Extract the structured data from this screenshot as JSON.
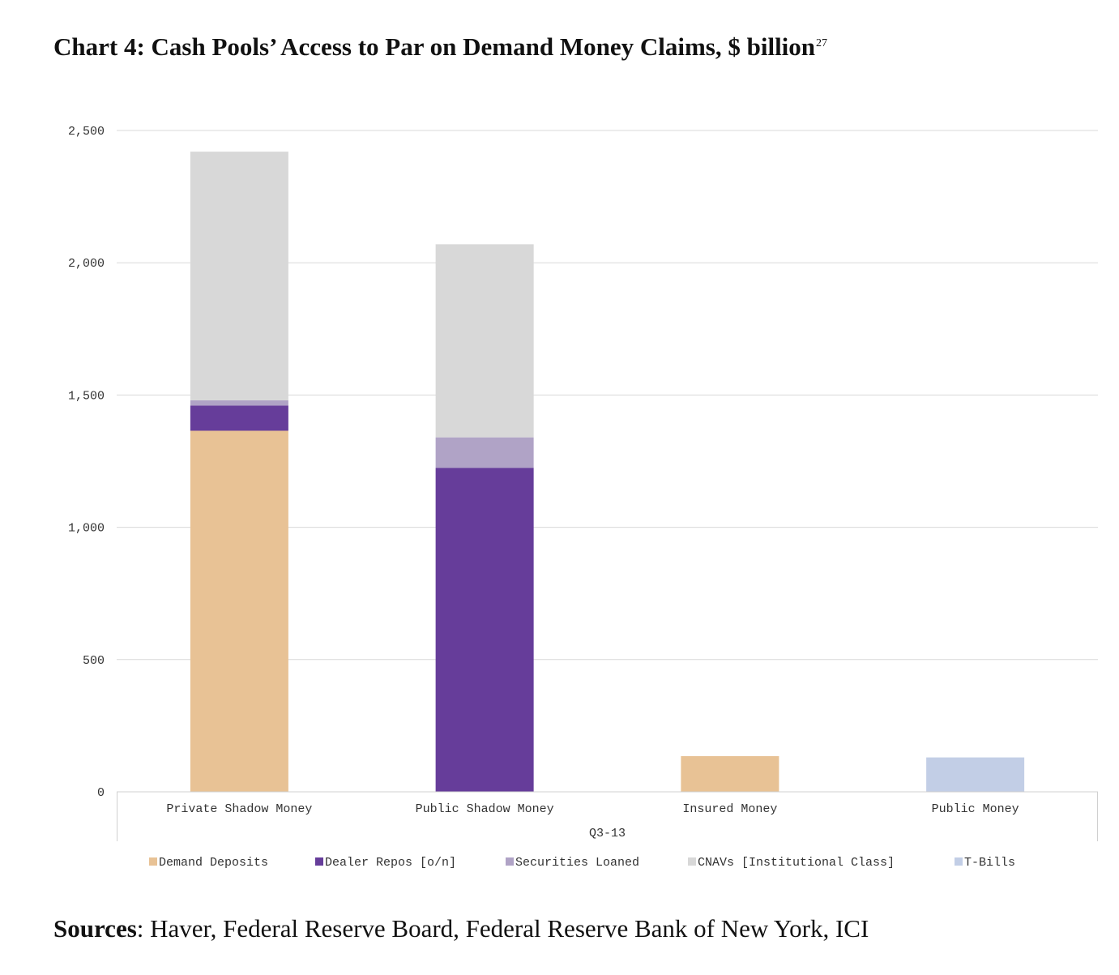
{
  "title": {
    "text": "Chart 4: Cash Pools’ Access to Par on Demand Money Claims, $ billion",
    "footnote": "27"
  },
  "sources": {
    "label": "Sources",
    "text": ": Haver, Federal Reserve Board, Federal Reserve Bank of New York, ICI"
  },
  "chart_data": {
    "type": "bar",
    "stacked": true,
    "group_label": "Q3-13",
    "categories": [
      "Private Shadow Money",
      "Public Shadow Money",
      "Insured Money",
      "Public Money"
    ],
    "ylim": [
      0,
      2500
    ],
    "yticks": [
      0,
      500,
      1000,
      1500,
      2000,
      2500
    ],
    "ytick_labels": [
      "0",
      "500",
      "1,000",
      "1,500",
      "2,000",
      "2,500"
    ],
    "grid": true,
    "legend_position": "bottom",
    "series": [
      {
        "name": "Demand Deposits",
        "color": "#e8c295",
        "values": [
          1365,
          0,
          135,
          0
        ]
      },
      {
        "name": "Dealer Repos [o/n]",
        "color": "#663d9a",
        "values": [
          95,
          1225,
          0,
          0
        ]
      },
      {
        "name": "Securities Loaned",
        "color": "#b0a3c6",
        "values": [
          20,
          115,
          0,
          0
        ]
      },
      {
        "name": "CNAVs [Institutional Class]",
        "color": "#d8d8d8",
        "values": [
          940,
          730,
          0,
          0
        ]
      },
      {
        "name": "T-Bills",
        "color": "#c2cee6",
        "values": [
          0,
          0,
          0,
          130
        ]
      }
    ]
  }
}
